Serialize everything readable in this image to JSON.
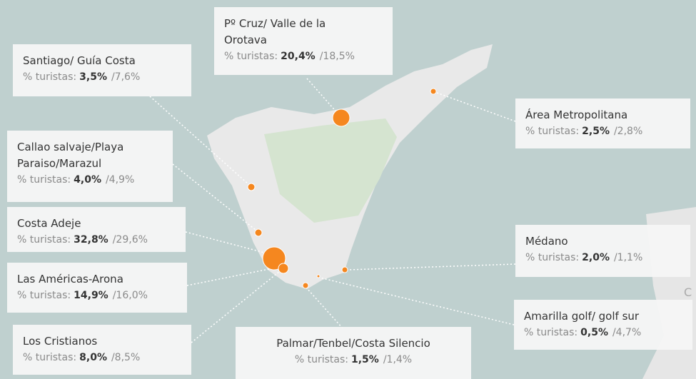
{
  "places": [
    {
      "name": "Pº Cruz/ Valle de la Orotava",
      "metric": "% turistas:",
      "value": "20,4%",
      "compare": "/18,5%"
    },
    {
      "name": "Santiago/ Guía Costa",
      "metric": "% turistas:",
      "value": "3,5%",
      "compare": "/7,6%"
    },
    {
      "name": "Área Metropolitana",
      "metric": "% turistas:",
      "value": "2,5%",
      "compare": "/2,8%"
    },
    {
      "name": "Callao salvaje/Playa Paraiso/Marazul",
      "metric": "% turistas:",
      "value": "4,0%",
      "compare": "/4,9%"
    },
    {
      "name": "Costa Adeje",
      "metric": "% turistas:",
      "value": "32,8%",
      "compare": "/29,6%"
    },
    {
      "name": "Médano",
      "metric": "% turistas:",
      "value": "2,0%",
      "compare": "/1,1%"
    },
    {
      "name": "Las Américas-Arona",
      "metric": "% turistas:",
      "value": "14,9%",
      "compare": "/16,0%"
    },
    {
      "name": "Amarilla golf/ golf sur",
      "metric": "% turistas:",
      "value": "0,5%",
      "compare": "/4,7%"
    },
    {
      "name": "Los Cristianos",
      "metric": "% turistas:",
      "value": "8,0%",
      "compare": "/8,5%"
    },
    {
      "name": "Palmar/Tenbel/Costa Silencio",
      "metric": "% turistas:",
      "value": "1,5%",
      "compare": "/1,4%"
    }
  ]
}
